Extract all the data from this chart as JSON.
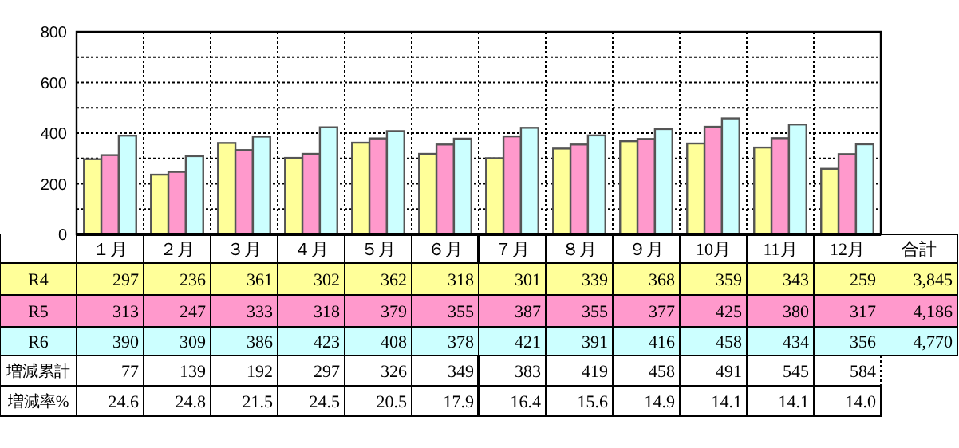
{
  "chart_data": {
    "type": "bar",
    "categories": [
      "１月",
      "２月",
      "３月",
      "４月",
      "５月",
      "６月",
      "７月",
      "８月",
      "９月",
      "10月",
      "11月",
      "12月"
    ],
    "series": [
      {
        "name": "R4",
        "color": "#ffff99",
        "values": [
          297,
          236,
          361,
          302,
          362,
          318,
          301,
          339,
          368,
          359,
          343,
          259
        ]
      },
      {
        "name": "R5",
        "color": "#ff99cc",
        "values": [
          313,
          247,
          333,
          318,
          379,
          355,
          387,
          355,
          377,
          425,
          380,
          317
        ]
      },
      {
        "name": "R6",
        "color": "#ccffff",
        "values": [
          390,
          309,
          386,
          423,
          408,
          378,
          421,
          391,
          416,
          458,
          434,
          356
        ]
      }
    ],
    "ylim": [
      0,
      800
    ],
    "yticks": [
      0,
      {
        "value": 100,
        "label": null
      },
      200,
      {
        "value": 300,
        "label": null
      },
      400,
      {
        "value": 500,
        "label": null
      },
      600,
      {
        "value": 700,
        "label": null
      },
      800
    ],
    "grid": true,
    "data_labels": true,
    "annotations": [
      "合計",
      "3,845",
      "4,186",
      "4,770",
      "増減累計",
      "77",
      "139",
      "192",
      "297",
      "326",
      "349",
      "383",
      "419",
      "458",
      "491",
      "545",
      "584",
      "増減率%",
      "24.6",
      "24.8",
      "21.5",
      "24.5",
      "20.5",
      "17.9",
      "16.4",
      "15.6",
      "14.9",
      "14.1",
      "14.1",
      "14.0"
    ]
  }
}
